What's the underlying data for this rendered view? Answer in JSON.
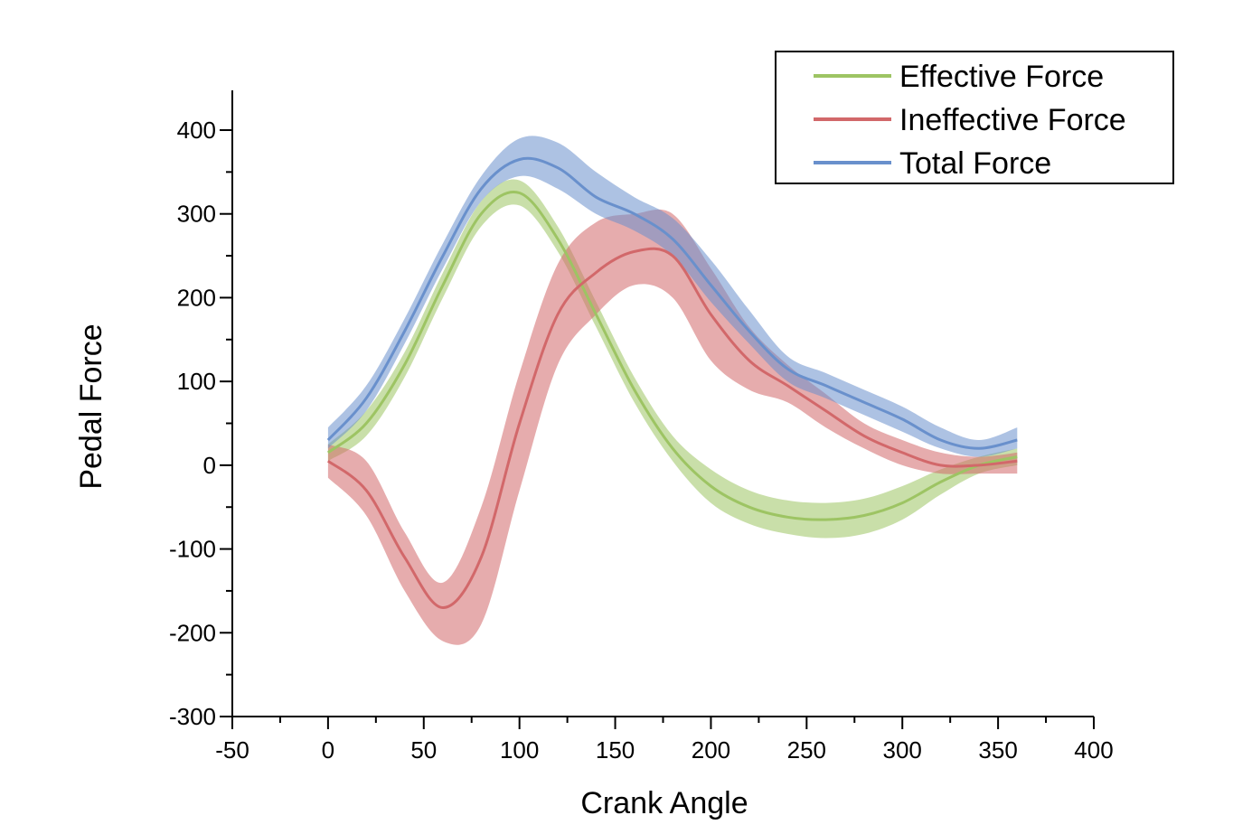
{
  "chart_data": {
    "type": "line",
    "title": "",
    "xlabel": "Crank Angle",
    "ylabel": "Pedal Force",
    "xlim": [
      -50,
      400
    ],
    "ylim": [
      -300,
      450
    ],
    "x_ticks": [
      -50,
      0,
      50,
      100,
      150,
      200,
      250,
      300,
      350,
      400
    ],
    "y_ticks": [
      -300,
      -200,
      -100,
      0,
      100,
      200,
      300,
      400
    ],
    "x_tick_labels": [
      "-50",
      "0",
      "50",
      "100",
      "150",
      "200",
      "250",
      "300",
      "350",
      "400"
    ],
    "y_tick_labels": [
      "-300",
      "-200",
      "-100",
      "0",
      "100",
      "200",
      "300",
      "400"
    ],
    "grid": false,
    "legend_position": "top-right",
    "x": [
      0,
      20,
      40,
      60,
      80,
      100,
      120,
      140,
      160,
      180,
      200,
      220,
      240,
      260,
      280,
      300,
      320,
      340,
      360
    ],
    "series": [
      {
        "name": "Effective Force",
        "color": "#9dc463",
        "values": [
          15,
          50,
          120,
          215,
          300,
          325,
          270,
          180,
          90,
          20,
          -25,
          -50,
          -62,
          -65,
          -60,
          -45,
          -20,
          0,
          10
        ],
        "lower": [
          5,
          35,
          105,
          200,
          285,
          310,
          255,
          165,
          75,
          5,
          -45,
          -70,
          -82,
          -87,
          -82,
          -65,
          -35,
          -10,
          0
        ],
        "upper": [
          25,
          65,
          135,
          230,
          315,
          340,
          285,
          195,
          105,
          35,
          -5,
          -30,
          -42,
          -45,
          -40,
          -25,
          -5,
          10,
          20
        ]
      },
      {
        "name": "Ineffective Force",
        "color": "#d2686a",
        "values": [
          5,
          -30,
          -110,
          -170,
          -110,
          50,
          180,
          230,
          255,
          250,
          180,
          125,
          95,
          65,
          35,
          15,
          0,
          0,
          5
        ],
        "lower": [
          -15,
          -60,
          -150,
          -210,
          -190,
          -30,
          120,
          180,
          215,
          200,
          125,
          90,
          75,
          45,
          20,
          0,
          -10,
          -10,
          -10
        ],
        "upper": [
          25,
          5,
          -80,
          -140,
          -50,
          110,
          240,
          290,
          300,
          300,
          235,
          165,
          120,
          85,
          50,
          30,
          15,
          10,
          15
        ]
      },
      {
        "name": "Total Force",
        "color": "#6990cc",
        "values": [
          30,
          80,
          160,
          250,
          330,
          365,
          355,
          320,
          300,
          270,
          215,
          160,
          115,
          95,
          75,
          55,
          30,
          20,
          30
        ],
        "lower": [
          20,
          65,
          145,
          235,
          315,
          345,
          330,
          300,
          280,
          250,
          195,
          145,
          100,
          80,
          60,
          40,
          20,
          10,
          20
        ],
        "upper": [
          45,
          95,
          175,
          265,
          345,
          390,
          385,
          350,
          320,
          295,
          245,
          185,
          130,
          110,
          90,
          70,
          45,
          30,
          45
        ]
      }
    ]
  }
}
